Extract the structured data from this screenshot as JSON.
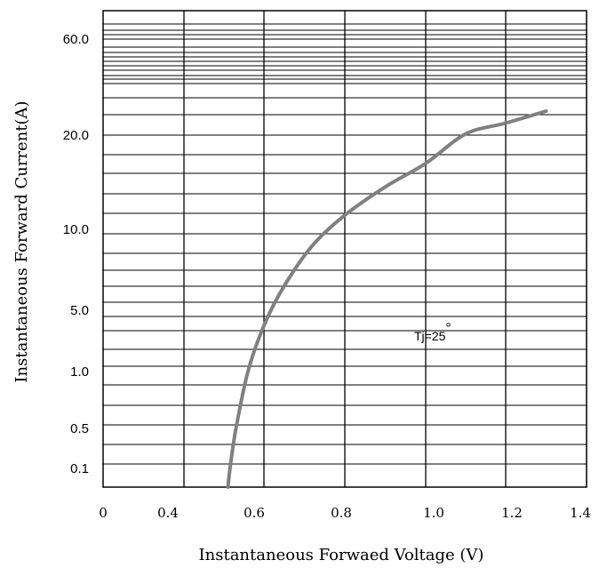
{
  "chart_data": {
    "type": "line",
    "title": "",
    "xlabel": "Instantaneous Forwaed Voltage (V)",
    "ylabel": "Instantaneous Forward Current(A)",
    "xlim": [
      0,
      1.4
    ],
    "x_ticks": [
      "0",
      "0.4",
      "0.6",
      "0.8",
      "1.0",
      "1.2",
      "1.4"
    ],
    "y_ticks": [
      "60.0",
      "20.0",
      "10.0",
      "5.0",
      "1.0",
      "0.5",
      "0.1"
    ],
    "grid": true,
    "annotation": {
      "text": "Tj=25",
      "superscript": "°"
    },
    "series": [
      {
        "color": "#808080",
        "points": [
          {
            "x": 0.51,
            "y": 0.0
          },
          {
            "x": 0.515,
            "y": 0.1
          },
          {
            "x": 0.53,
            "y": 0.5
          },
          {
            "x": 0.56,
            "y": 1.0
          },
          {
            "x": 0.6,
            "y": 4.0
          },
          {
            "x": 0.65,
            "y": 6.5
          },
          {
            "x": 0.72,
            "y": 9.0
          },
          {
            "x": 0.8,
            "y": 11.5
          },
          {
            "x": 0.9,
            "y": 14.5
          },
          {
            "x": 1.0,
            "y": 17.0
          },
          {
            "x": 1.1,
            "y": 20.5
          },
          {
            "x": 1.2,
            "y": 25.0
          },
          {
            "x": 1.3,
            "y": 30.0
          }
        ]
      }
    ]
  }
}
